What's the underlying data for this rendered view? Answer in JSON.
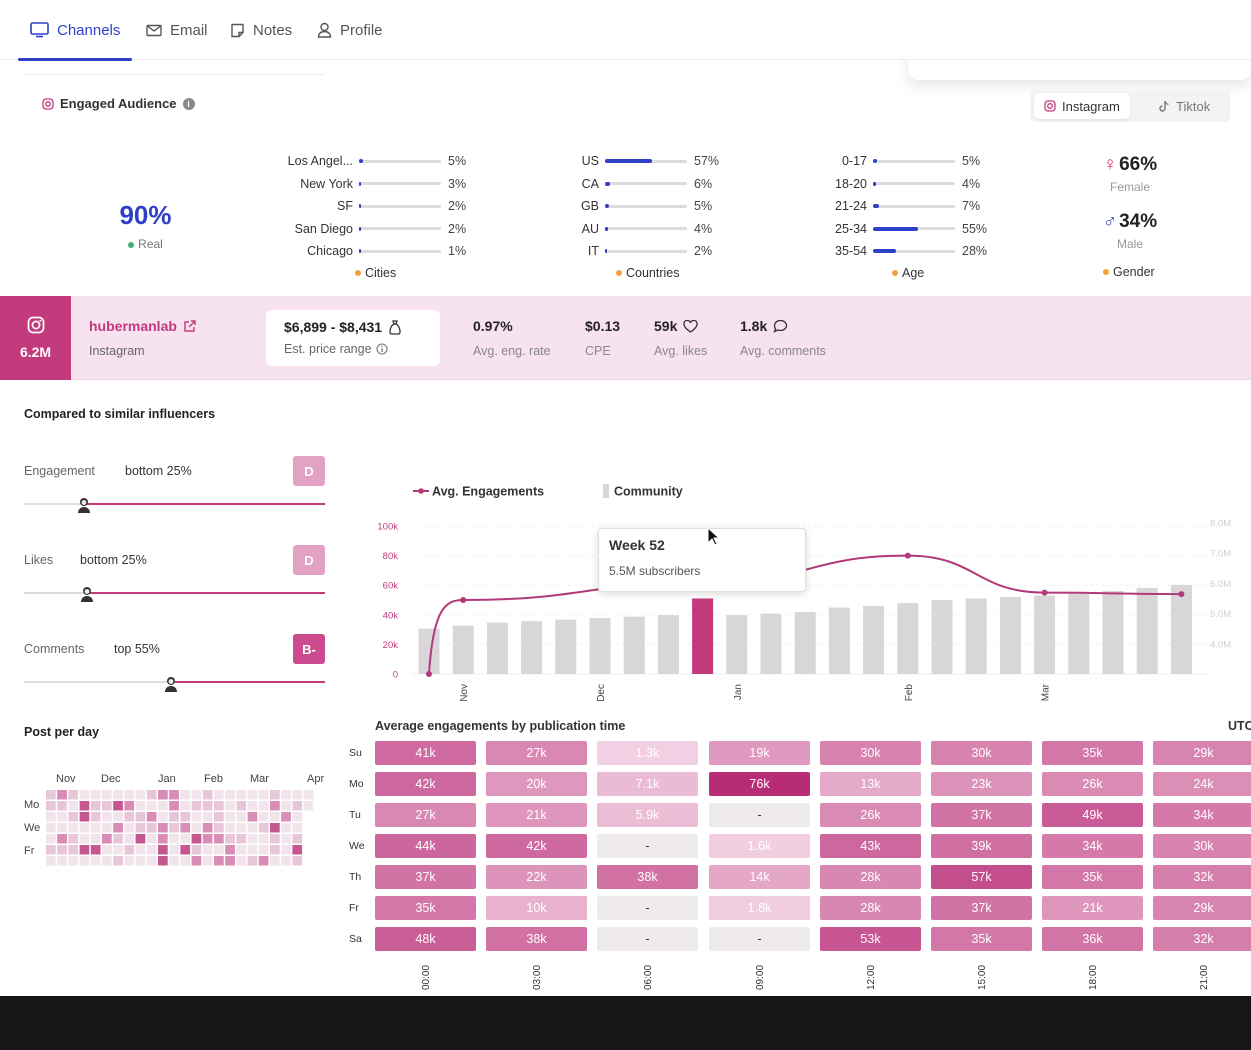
{
  "tabs": [
    {
      "label": "Channels",
      "icon": "monitor-icon",
      "active": true
    },
    {
      "label": "Email",
      "icon": "mail-icon"
    },
    {
      "label": "Notes",
      "icon": "note-icon"
    },
    {
      "label": "Profile",
      "icon": "user-icon"
    }
  ],
  "audience": {
    "title": "Engaged Audience",
    "platforms": [
      "Instagram",
      "Tiktok"
    ],
    "selected_platform": "Instagram",
    "real_pct": "90%",
    "real_label": "Real",
    "cities": {
      "caption": "Cities",
      "items": [
        {
          "label": "Los Angel...",
          "pct": "5%",
          "value": 5
        },
        {
          "label": "New York",
          "pct": "3%",
          "value": 3
        },
        {
          "label": "SF",
          "pct": "2%",
          "value": 2
        },
        {
          "label": "San Diego",
          "pct": "2%",
          "value": 2
        },
        {
          "label": "Chicago",
          "pct": "1%",
          "value": 1
        }
      ]
    },
    "countries": {
      "caption": "Countries",
      "items": [
        {
          "label": "US",
          "pct": "57%",
          "value": 57
        },
        {
          "label": "CA",
          "pct": "6%",
          "value": 6
        },
        {
          "label": "GB",
          "pct": "5%",
          "value": 5
        },
        {
          "label": "AU",
          "pct": "4%",
          "value": 4
        },
        {
          "label": "IT",
          "pct": "2%",
          "value": 2
        }
      ]
    },
    "age": {
      "caption": "Age",
      "items": [
        {
          "label": "0-17",
          "pct": "5%",
          "value": 5
        },
        {
          "label": "18-20",
          "pct": "4%",
          "value": 4
        },
        {
          "label": "21-24",
          "pct": "7%",
          "value": 7
        },
        {
          "label": "25-34",
          "pct": "55%",
          "value": 55
        },
        {
          "label": "35-54",
          "pct": "28%",
          "value": 28
        }
      ]
    },
    "gender": {
      "caption": "Gender",
      "female_pct": "66%",
      "female_label": "Female",
      "male_pct": "34%",
      "male_label": "Male"
    }
  },
  "profile": {
    "followers": "6.2M",
    "handle": "hubermanlab",
    "platform": "Instagram",
    "price_range": "$6,899 - $8,431",
    "price_label": "Est. price range",
    "stats": [
      {
        "value": "0.97%",
        "label": "Avg. eng. rate"
      },
      {
        "value": "$0.13",
        "label": "CPE"
      },
      {
        "value": "59k",
        "label": "Avg. likes",
        "icon": "heart-icon"
      },
      {
        "value": "1.8k",
        "label": "Avg. comments",
        "icon": "comment-icon"
      }
    ]
  },
  "comparison": {
    "title": "Compared to similar influencers",
    "items": [
      {
        "label": "Engagement",
        "value": "bottom 25%",
        "grade": "D",
        "position": 0.2
      },
      {
        "label": "Likes",
        "value": "bottom 25%",
        "grade": "D",
        "position": 0.21
      },
      {
        "label": "Comments",
        "value": "top 55%",
        "grade": "B-",
        "position": 0.49
      }
    ]
  },
  "posts_per_day": {
    "title": "Post per day",
    "months": [
      "Nov",
      "Dec",
      "Jan",
      "Feb",
      "Mar",
      "Apr"
    ],
    "days": [
      "Mo",
      "We",
      "Fr"
    ]
  },
  "chart_data": {
    "type": "line",
    "series": [
      {
        "name": "Avg. Engagements",
        "type": "line",
        "axis": "left",
        "points": [
          [
            0,
            0
          ],
          [
            1,
            50000
          ],
          [
            8.2,
            62000
          ],
          [
            14,
            80000
          ],
          [
            18,
            55000
          ],
          [
            22,
            54000
          ]
        ]
      },
      {
        "name": "Community",
        "type": "bar",
        "axis": "right",
        "values": [
          4.5,
          4.6,
          4.7,
          4.75,
          4.8,
          4.85,
          4.9,
          4.95,
          5.5,
          4.95,
          5.0,
          5.05,
          5.2,
          5.25,
          5.35,
          5.45,
          5.5,
          5.55,
          5.6,
          5.65,
          5.75,
          5.85,
          5.95
        ]
      }
    ],
    "y_left_ticks": [
      "0",
      "20k",
      "40k",
      "60k",
      "80k",
      "100k"
    ],
    "y_left_range": [
      0,
      100000
    ],
    "y_right_ticks": [
      "4.0M",
      "5.0M",
      "6.0M",
      "7.0M",
      "8.0M"
    ],
    "y_right_range": [
      3.0,
      8.0
    ],
    "x_labels": [
      {
        "label": "Nov",
        "index": 1
      },
      {
        "label": "Dec",
        "index": 5
      },
      {
        "label": "Jan",
        "index": 9
      },
      {
        "label": "Feb",
        "index": 14
      },
      {
        "label": "Mar",
        "index": 18
      }
    ],
    "highlight_index": 8,
    "tooltip": {
      "title": "Week 52",
      "text": "5.5M subscribers"
    },
    "legend_placement": "top-left"
  },
  "heatmap": {
    "title": "Average engagements by publication time",
    "timezone": "UTC",
    "times": [
      "00:00",
      "03:00",
      "06:00",
      "09:00",
      "12:00",
      "15:00",
      "18:00",
      "21:00"
    ],
    "days": [
      "Su",
      "Mo",
      "Tu",
      "We",
      "Th",
      "Fr",
      "Sa"
    ],
    "values": [
      [
        "41k",
        "27k",
        "1.3k",
        "19k",
        "30k",
        "30k",
        "35k",
        "29k"
      ],
      [
        "42k",
        "20k",
        "7.1k",
        "76k",
        "13k",
        "23k",
        "26k",
        "24k"
      ],
      [
        "27k",
        "21k",
        "5.9k",
        "-",
        "26k",
        "37k",
        "49k",
        "34k"
      ],
      [
        "44k",
        "42k",
        "-",
        "1.6k",
        "43k",
        "39k",
        "34k",
        "30k"
      ],
      [
        "37k",
        "22k",
        "38k",
        "14k",
        "28k",
        "57k",
        "35k",
        "32k"
      ],
      [
        "35k",
        "10k",
        "-",
        "1.8k",
        "28k",
        "37k",
        "21k",
        "29k"
      ],
      [
        "48k",
        "38k",
        "-",
        "-",
        "53k",
        "35k",
        "36k",
        "32k"
      ]
    ]
  },
  "colors": {
    "accent": "#2f3fc8",
    "brand_pink": "#c23a7c",
    "band_bg": "#f7e2ef",
    "bar_gray": "#d9d6d8"
  }
}
